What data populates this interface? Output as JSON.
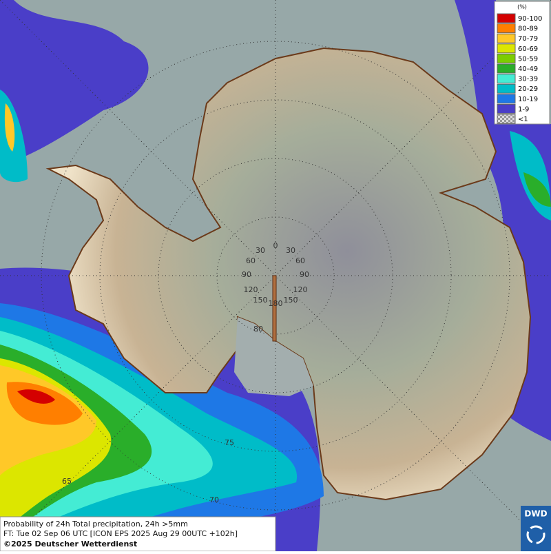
{
  "map": {
    "legend": {
      "title": "(%)",
      "items": [
        {
          "label": "90-100",
          "color": "#d40000"
        },
        {
          "label": "80-89",
          "color": "#ff7f00"
        },
        {
          "label": "70-79",
          "color": "#ffc828"
        },
        {
          "label": "60-69",
          "color": "#dce600"
        },
        {
          "label": "50-59",
          "color": "#7ccd00"
        },
        {
          "label": "40-49",
          "color": "#2aae2a"
        },
        {
          "label": "30-39",
          "color": "#44ecd4"
        },
        {
          "label": "20-29",
          "color": "#00bcc8"
        },
        {
          "label": "10-19",
          "color": "#1e78e6"
        },
        {
          "label": "1-9",
          "color": "#4a3ec8"
        },
        {
          "label": "<1",
          "color": "#b8b8b8"
        }
      ]
    },
    "graticule_labels": [
      "0",
      "30",
      "30",
      "60",
      "60",
      "90",
      "90",
      "120",
      "120",
      "150",
      "150",
      "180",
      "80",
      "75",
      "65",
      "70"
    ],
    "caption": [
      "Probability of 24h Total precipitation, 24h >5mm",
      "FT: Tue 02 Sep 06 UTC [ICON EPS 2025 Aug 29 00UTC +102h]",
      "©2025 Deutscher Wetterdienst"
    ],
    "logo": "DWD"
  }
}
